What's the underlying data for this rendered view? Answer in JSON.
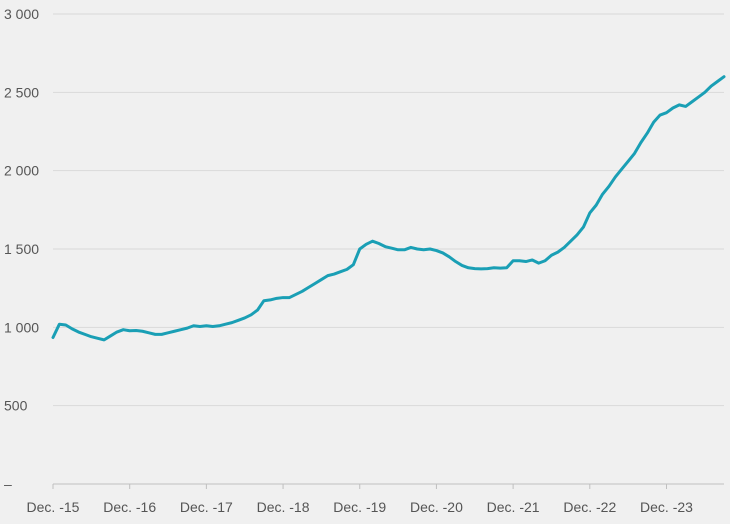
{
  "chart_data": {
    "type": "line",
    "title": "",
    "xlabel": "",
    "ylabel": "",
    "ylim": [
      0,
      3000
    ],
    "xlim": [
      "2015-12",
      "2024-09"
    ],
    "grid": true,
    "legend": "none",
    "y_ticks": [
      {
        "value": 0,
        "label": "–"
      },
      {
        "value": 500,
        "label": "500"
      },
      {
        "value": 1000,
        "label": "1 000"
      },
      {
        "value": 1500,
        "label": "1 500"
      },
      {
        "value": 2000,
        "label": "2 000"
      },
      {
        "value": 2500,
        "label": "2 500"
      },
      {
        "value": 3000,
        "label": "3 000"
      }
    ],
    "x_ticks": [
      {
        "value": "2015-12",
        "label": "Dec. -15"
      },
      {
        "value": "2016-12",
        "label": "Dec. -16"
      },
      {
        "value": "2017-12",
        "label": "Dec. -17"
      },
      {
        "value": "2018-12",
        "label": "Dec. -18"
      },
      {
        "value": "2019-12",
        "label": "Dec. -19"
      },
      {
        "value": "2020-12",
        "label": "Dec. -20"
      },
      {
        "value": "2021-12",
        "label": "Dec. -21"
      },
      {
        "value": "2022-12",
        "label": "Dec. -22"
      },
      {
        "value": "2023-12",
        "label": "Dec. -23"
      }
    ],
    "series": [
      {
        "color": "#1a9fb5",
        "points": [
          [
            "2015-12",
            935
          ],
          [
            "2016-01",
            1020
          ],
          [
            "2016-02",
            1015
          ],
          [
            "2016-03",
            990
          ],
          [
            "2016-04",
            970
          ],
          [
            "2016-05",
            955
          ],
          [
            "2016-06",
            940
          ],
          [
            "2016-07",
            930
          ],
          [
            "2016-08",
            920
          ],
          [
            "2016-09",
            945
          ],
          [
            "2016-10",
            970
          ],
          [
            "2016-11",
            985
          ],
          [
            "2016-12",
            978
          ],
          [
            "2017-01",
            980
          ],
          [
            "2017-02",
            975
          ],
          [
            "2017-03",
            965
          ],
          [
            "2017-04",
            955
          ],
          [
            "2017-05",
            955
          ],
          [
            "2017-06",
            965
          ],
          [
            "2017-07",
            975
          ],
          [
            "2017-08",
            985
          ],
          [
            "2017-09",
            995
          ],
          [
            "2017-10",
            1010
          ],
          [
            "2017-11",
            1005
          ],
          [
            "2017-12",
            1010
          ],
          [
            "2018-01",
            1005
          ],
          [
            "2018-02",
            1010
          ],
          [
            "2018-03",
            1020
          ],
          [
            "2018-04",
            1030
          ],
          [
            "2018-05",
            1045
          ],
          [
            "2018-06",
            1060
          ],
          [
            "2018-07",
            1080
          ],
          [
            "2018-08",
            1110
          ],
          [
            "2018-09",
            1170
          ],
          [
            "2018-10",
            1175
          ],
          [
            "2018-11",
            1185
          ],
          [
            "2018-12",
            1190
          ],
          [
            "2019-01",
            1190
          ],
          [
            "2019-02",
            1210
          ],
          [
            "2019-03",
            1230
          ],
          [
            "2019-04",
            1255
          ],
          [
            "2019-05",
            1280
          ],
          [
            "2019-06",
            1305
          ],
          [
            "2019-07",
            1330
          ],
          [
            "2019-08",
            1340
          ],
          [
            "2019-09",
            1355
          ],
          [
            "2019-10",
            1370
          ],
          [
            "2019-11",
            1400
          ],
          [
            "2019-12",
            1500
          ],
          [
            "2020-01",
            1530
          ],
          [
            "2020-02",
            1550
          ],
          [
            "2020-03",
            1535
          ],
          [
            "2020-04",
            1515
          ],
          [
            "2020-05",
            1505
          ],
          [
            "2020-06",
            1495
          ],
          [
            "2020-07",
            1495
          ],
          [
            "2020-08",
            1510
          ],
          [
            "2020-09",
            1500
          ],
          [
            "2020-10",
            1495
          ],
          [
            "2020-11",
            1500
          ],
          [
            "2020-12",
            1490
          ],
          [
            "2021-01",
            1475
          ],
          [
            "2021-02",
            1450
          ],
          [
            "2021-03",
            1420
          ],
          [
            "2021-04",
            1395
          ],
          [
            "2021-05",
            1380
          ],
          [
            "2021-06",
            1375
          ],
          [
            "2021-07",
            1373
          ],
          [
            "2021-08",
            1375
          ],
          [
            "2021-09",
            1380
          ],
          [
            "2021-10",
            1378
          ],
          [
            "2021-11",
            1380
          ],
          [
            "2021-12",
            1425
          ],
          [
            "2022-01",
            1425
          ],
          [
            "2022-02",
            1420
          ],
          [
            "2022-03",
            1430
          ],
          [
            "2022-04",
            1410
          ],
          [
            "2022-05",
            1425
          ],
          [
            "2022-06",
            1460
          ],
          [
            "2022-07",
            1480
          ],
          [
            "2022-08",
            1510
          ],
          [
            "2022-09",
            1550
          ],
          [
            "2022-10",
            1590
          ],
          [
            "2022-11",
            1640
          ],
          [
            "2022-12",
            1730
          ],
          [
            "2023-01",
            1780
          ],
          [
            "2023-02",
            1850
          ],
          [
            "2023-03",
            1900
          ],
          [
            "2023-04",
            1960
          ],
          [
            "2023-05",
            2010
          ],
          [
            "2023-06",
            2060
          ],
          [
            "2023-07",
            2110
          ],
          [
            "2023-08",
            2180
          ],
          [
            "2023-09",
            2240
          ],
          [
            "2023-10",
            2310
          ],
          [
            "2023-11",
            2355
          ],
          [
            "2023-12",
            2370
          ],
          [
            "2024-01",
            2400
          ],
          [
            "2024-02",
            2420
          ],
          [
            "2024-03",
            2410
          ],
          [
            "2024-04",
            2440
          ],
          [
            "2024-05",
            2470
          ],
          [
            "2024-06",
            2500
          ],
          [
            "2024-07",
            2540
          ],
          [
            "2024-08",
            2570
          ],
          [
            "2024-09",
            2600
          ]
        ]
      }
    ]
  }
}
